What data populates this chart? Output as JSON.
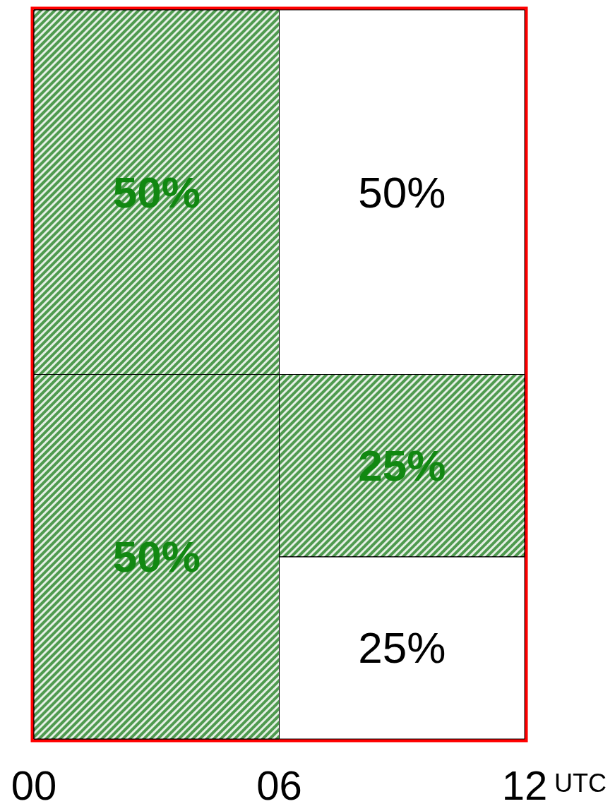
{
  "chart_data": {
    "type": "bar",
    "stacked": true,
    "x": [
      3,
      9
    ],
    "xlabel": "UTC",
    "xlim": [
      0,
      12
    ],
    "xticks": [
      {
        "value": 0,
        "label": "00"
      },
      {
        "value": 6,
        "label": "06"
      },
      {
        "value": 12,
        "label": "12"
      }
    ],
    "tick_labels": "x",
    "series": [
      {
        "values": [
          50,
          25
        ],
        "value_labels": [
          "50%",
          "25%"
        ],
        "colors": [
          "#4f9a4f",
          "#ffffff"
        ]
      },
      {
        "values": [
          50,
          25
        ],
        "value_labels": [
          "50%",
          "25%"
        ],
        "colors": [
          "#4f9a4f",
          "#4f9a4f"
        ]
      },
      {
        "values": [
          null,
          50
        ],
        "value_labels": [
          null,
          "50%"
        ],
        "colors": [
          null,
          "#ffffff"
        ]
      }
    ]
  }
}
